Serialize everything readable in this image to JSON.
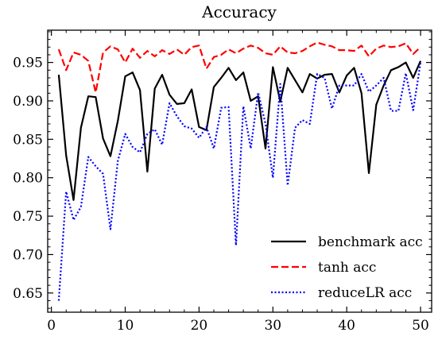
{
  "chart_data": {
    "type": "line",
    "title": "Accuracy",
    "xlabel": "",
    "ylabel": "",
    "xlim": [
      -0.5,
      51.5
    ],
    "ylim": [
      0.625,
      0.992
    ],
    "xticks": [
      0,
      10,
      20,
      30,
      40,
      50
    ],
    "yticks": [
      0.65,
      0.7,
      0.75,
      0.8,
      0.85,
      0.9,
      0.95
    ],
    "ytick_labels": [
      "0.65",
      "0.70",
      "0.75",
      "0.80",
      "0.85",
      "0.90",
      "0.95"
    ],
    "grid": false,
    "legend_position": "lower-right",
    "x": [
      1,
      2,
      3,
      4,
      5,
      6,
      7,
      8,
      9,
      10,
      11,
      12,
      13,
      14,
      15,
      16,
      17,
      18,
      19,
      20,
      21,
      22,
      23,
      24,
      25,
      26,
      27,
      28,
      29,
      30,
      31,
      32,
      33,
      34,
      35,
      36,
      37,
      38,
      39,
      40,
      41,
      42,
      43,
      44,
      45,
      46,
      47,
      48,
      49,
      50
    ],
    "series": [
      {
        "name": "benchmark acc",
        "color": "#000000",
        "dash": "solid",
        "values": [
          0.934,
          0.829,
          0.771,
          0.865,
          0.906,
          0.905,
          0.851,
          0.828,
          0.874,
          0.932,
          0.937,
          0.914,
          0.808,
          0.916,
          0.934,
          0.908,
          0.896,
          0.897,
          0.915,
          0.866,
          0.862,
          0.918,
          0.93,
          0.943,
          0.927,
          0.937,
          0.9,
          0.906,
          0.838,
          0.944,
          0.899,
          0.943,
          0.927,
          0.911,
          0.935,
          0.929,
          0.934,
          0.935,
          0.911,
          0.933,
          0.943,
          0.91,
          0.806,
          0.895,
          0.92,
          0.94,
          0.944,
          0.95,
          0.93,
          0.952
        ]
      },
      {
        "name": "tanh acc",
        "color": "#ff0000",
        "dash": "dashed",
        "values": [
          0.967,
          0.94,
          0.963,
          0.96,
          0.952,
          0.911,
          0.963,
          0.971,
          0.967,
          0.95,
          0.968,
          0.956,
          0.965,
          0.958,
          0.966,
          0.961,
          0.967,
          0.96,
          0.97,
          0.972,
          0.942,
          0.957,
          0.96,
          0.967,
          0.962,
          0.968,
          0.972,
          0.969,
          0.962,
          0.96,
          0.971,
          0.963,
          0.962,
          0.965,
          0.971,
          0.976,
          0.973,
          0.971,
          0.966,
          0.966,
          0.965,
          0.972,
          0.958,
          0.968,
          0.972,
          0.97,
          0.971,
          0.975,
          0.961,
          0.97
        ]
      },
      {
        "name": "reduceLR acc",
        "color": "#0000ff",
        "dash": "dotted",
        "values": [
          0.64,
          0.782,
          0.745,
          0.762,
          0.827,
          0.815,
          0.805,
          0.733,
          0.822,
          0.857,
          0.84,
          0.833,
          0.857,
          0.863,
          0.843,
          0.897,
          0.88,
          0.867,
          0.864,
          0.852,
          0.866,
          0.838,
          0.891,
          0.892,
          0.712,
          0.893,
          0.838,
          0.911,
          0.87,
          0.8,
          0.922,
          0.79,
          0.865,
          0.875,
          0.87,
          0.935,
          0.93,
          0.89,
          0.92,
          0.92,
          0.92,
          0.935,
          0.912,
          0.92,
          0.93,
          0.887,
          0.887,
          0.936,
          0.888,
          0.95
        ]
      }
    ]
  }
}
